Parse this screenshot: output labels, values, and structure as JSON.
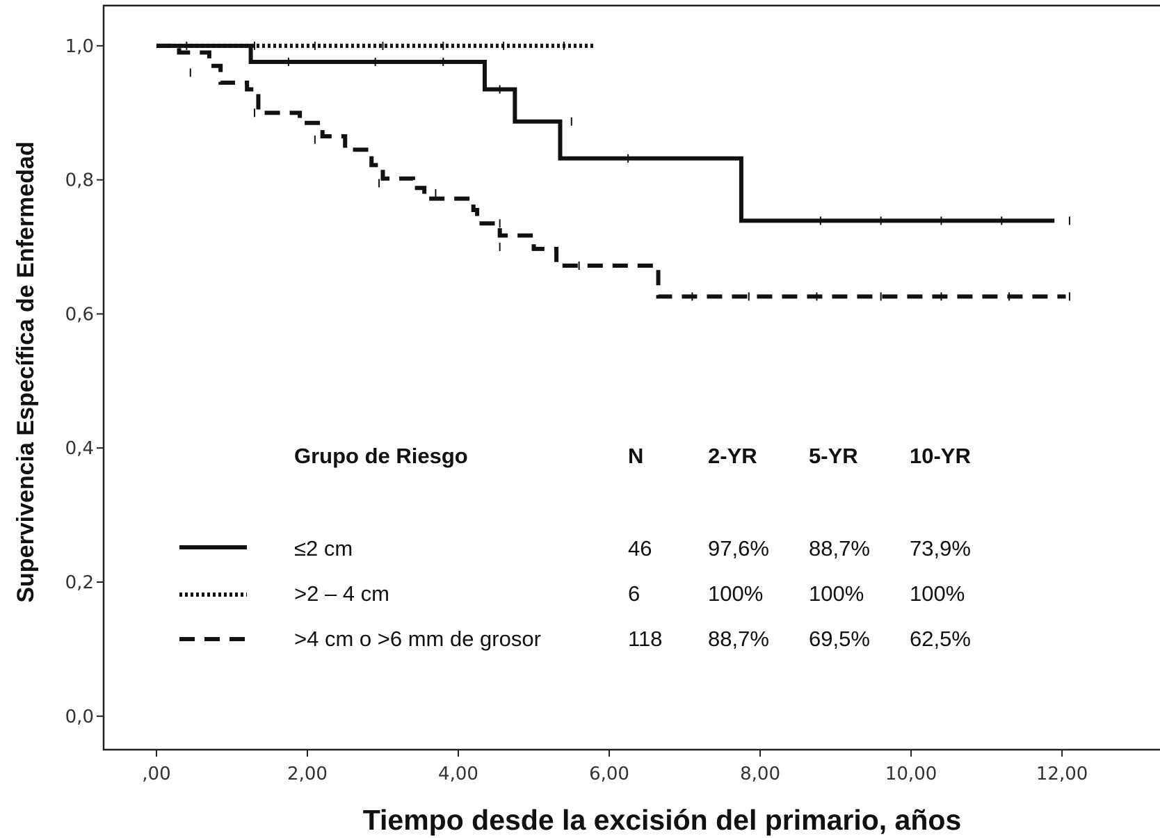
{
  "chart_data": {
    "type": "line",
    "subtype": "kaplan-meier step",
    "xlabel": "Tiempo desde la excisión del primario, años",
    "ylabel": "Supervivencia Específica de Enfermedad",
    "xlim": [
      -0.7,
      13.4
    ],
    "ylim": [
      -0.05,
      1.06
    ],
    "x_ticks": [
      0,
      2,
      4,
      6,
      8,
      10,
      12
    ],
    "x_tick_labels": [
      ",00",
      "2,00",
      "4,00",
      "6,00",
      "8,00",
      "10,00",
      "12,00"
    ],
    "y_ticks": [
      0,
      0.2,
      0.4,
      0.6,
      0.8,
      1.0
    ],
    "y_tick_labels": [
      "0,0",
      "0,2",
      "0,4",
      "0,6",
      "0,8",
      "1,0"
    ],
    "grid": false,
    "series": [
      {
        "name": "≤2 cm",
        "style": "solid",
        "color": "#111111",
        "steps": [
          [
            0,
            1.0
          ],
          [
            1.25,
            0.976
          ],
          [
            4.35,
            0.935
          ],
          [
            4.75,
            0.887
          ],
          [
            5.35,
            0.832
          ],
          [
            7.75,
            0.739
          ],
          [
            11.9,
            0.739
          ]
        ],
        "censored": [
          [
            1.75,
            0.976
          ],
          [
            2.9,
            0.976
          ],
          [
            3.8,
            0.976
          ],
          [
            4.55,
            0.935
          ],
          [
            5.5,
            0.887
          ],
          [
            6.25,
            0.832
          ],
          [
            8.8,
            0.739
          ],
          [
            9.6,
            0.739
          ],
          [
            10.4,
            0.739
          ],
          [
            11.2,
            0.739
          ],
          [
            12.1,
            0.739
          ]
        ]
      },
      {
        "name": ">2 – 4 cm",
        "style": "dotted",
        "color": "#111111",
        "steps": [
          [
            0,
            1.0
          ],
          [
            5.8,
            1.0
          ]
        ],
        "censored": [
          [
            0.4,
            1.0
          ],
          [
            1.3,
            1.0
          ],
          [
            2.1,
            1.0
          ],
          [
            3.0,
            1.0
          ],
          [
            3.8,
            1.0
          ],
          [
            4.6,
            1.0
          ],
          [
            5.4,
            1.0
          ]
        ]
      },
      {
        "name": ">4 cm o >6 mm de grosor",
        "style": "dashed",
        "color": "#111111",
        "steps": [
          [
            0,
            1.0
          ],
          [
            0.3,
            0.99
          ],
          [
            0.7,
            0.97
          ],
          [
            0.85,
            0.945
          ],
          [
            1.2,
            0.935
          ],
          [
            1.35,
            0.9
          ],
          [
            1.9,
            0.885
          ],
          [
            2.2,
            0.865
          ],
          [
            2.5,
            0.845
          ],
          [
            2.85,
            0.822
          ],
          [
            3.0,
            0.802
          ],
          [
            3.4,
            0.788
          ],
          [
            3.55,
            0.772
          ],
          [
            4.2,
            0.755
          ],
          [
            4.25,
            0.735
          ],
          [
            4.55,
            0.717
          ],
          [
            5.0,
            0.697
          ],
          [
            5.3,
            0.672
          ],
          [
            6.65,
            0.626
          ],
          [
            12.05,
            0.626
          ]
        ],
        "censored": [
          [
            0.45,
            0.96
          ],
          [
            1.3,
            0.9
          ],
          [
            2.1,
            0.86
          ],
          [
            2.95,
            0.795
          ],
          [
            3.7,
            0.78
          ],
          [
            4.55,
            0.735
          ],
          [
            4.55,
            0.7
          ],
          [
            5.6,
            0.672
          ],
          [
            7.1,
            0.626
          ],
          [
            7.85,
            0.626
          ],
          [
            8.75,
            0.626
          ],
          [
            9.6,
            0.626
          ],
          [
            10.4,
            0.626
          ],
          [
            11.3,
            0.626
          ],
          [
            12.1,
            0.626
          ]
        ]
      }
    ],
    "table": {
      "headers": [
        "Grupo de Riesgo",
        "N",
        "2-YR",
        "5-YR",
        "10-YR"
      ],
      "rows": [
        {
          "group": "≤2 cm",
          "n": "46",
          "yr2": "97,6%",
          "yr5": "88,7%",
          "yr10": "73,9%"
        },
        {
          "group": ">2 – 4 cm",
          "n": "6",
          "yr2": "100%",
          "yr5": "100%",
          "yr10": "100%"
        },
        {
          "group": ">4 cm o >6 mm de grosor",
          "n": "118",
          "yr2": "88,7%",
          "yr5": "69,5%",
          "yr10": "62,5%"
        }
      ]
    }
  }
}
